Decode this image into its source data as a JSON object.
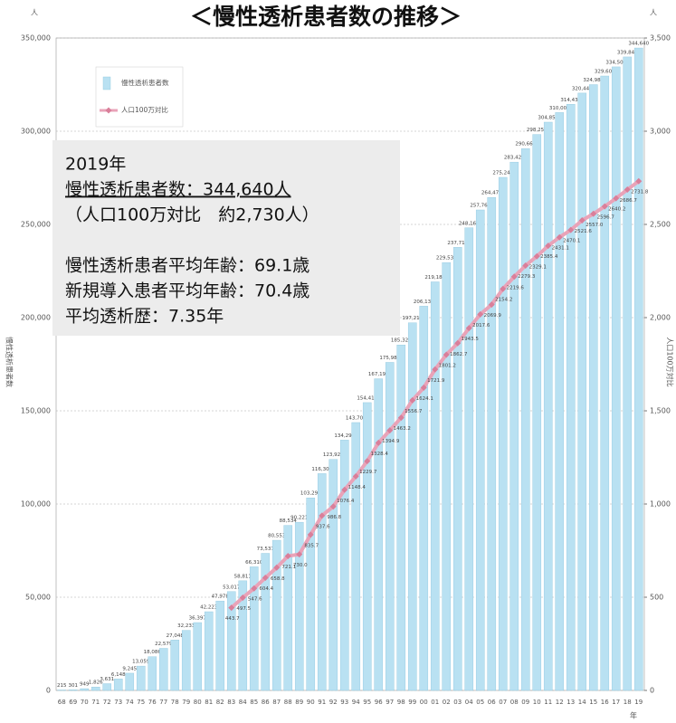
{
  "chart_data": {
    "type": "bar",
    "title": "＜慢性透析患者数の推移＞",
    "y_unit": "人",
    "y2_unit": "人",
    "x_unit": "年",
    "ylabel": "慢性透析患者数",
    "y2label": "人口100万対比",
    "annotations": [
      "2019年",
      "慢性透析患者数：344,640人",
      "（人口100万対比　約2,730人）",
      "慢性透析患者平均年齢：69.1歳",
      "新規導入患者平均年齢：70.4歳",
      "平均透析歴：7.35年"
    ],
    "categories": [
      "68",
      "69",
      "70",
      "71",
      "72",
      "73",
      "74",
      "75",
      "76",
      "77",
      "78",
      "79",
      "80",
      "81",
      "82",
      "83",
      "84",
      "85",
      "86",
      "87",
      "88",
      "89",
      "90",
      "91",
      "92",
      "93",
      "94",
      "95",
      "96",
      "97",
      "98",
      "99",
      "00",
      "01",
      "02",
      "03",
      "04",
      "05",
      "06",
      "07",
      "08",
      "09",
      "10",
      "11",
      "12",
      "13",
      "14",
      "15",
      "16",
      "17",
      "18",
      "19"
    ],
    "series": [
      {
        "name": "慢性透析患者数",
        "type": "bar",
        "color": "#b9e1f2",
        "values": [
          215,
          301,
          949,
          1826,
          3631,
          6148,
          9245,
          13059,
          18086,
          22579,
          27048,
          32233,
          36397,
          42223,
          47978,
          53017,
          58811,
          66310,
          73537,
          80553,
          88534,
          90221,
          103296,
          116303,
          123926,
          134298,
          143709,
          154413,
          167192,
          175988,
          185322,
          197213,
          206134,
          219183,
          229538,
          237710,
          248166,
          257765,
          264473,
          275242,
          283421,
          290661,
          298252,
          304856,
          310007,
          314438,
          320448,
          324986,
          329609,
          334505,
          339841,
          344640
        ],
        "value_labels": [
          "215",
          "301",
          "949",
          "1,826",
          "3,631",
          "6,148",
          "9,245",
          "13,059",
          "18,086",
          "22,579",
          "27,048",
          "32,233",
          "36,397",
          "42,223",
          "47,978",
          "53,017",
          "58,811",
          "66,310",
          "73,537",
          "80,553",
          "88,534",
          "90,221",
          "103,296",
          "116,303",
          "123,926",
          "134,298",
          "143,709",
          "154,413",
          "167,192",
          "175,988",
          "185,322",
          "197,213",
          "206,134",
          "219,183",
          "229,538",
          "237,710",
          "248,166",
          "257,765",
          "264,473",
          "275,242",
          "283,421",
          "290,661",
          "298,252",
          "304,856",
          "310,007",
          "314,438",
          "320,448",
          "324,986",
          "329,609",
          "334,505",
          "339,841",
          "344,640"
        ]
      },
      {
        "name": "人口100万対比",
        "type": "line",
        "axis": "y2",
        "color": "#e9a3b8",
        "values": [
          null,
          null,
          null,
          null,
          null,
          null,
          null,
          null,
          null,
          null,
          null,
          null,
          null,
          null,
          null,
          443.7,
          497.5,
          547.6,
          604.4,
          658.8,
          721.1,
          730.0,
          835.7,
          937.6,
          986.8,
          1076.4,
          1148.4,
          1229.7,
          1328.4,
          1394.9,
          1463.2,
          1556.7,
          1624.1,
          1721.9,
          1801.2,
          1862.7,
          1943.5,
          2017.6,
          2069.9,
          2154.2,
          2219.6,
          2279.3,
          2329.1,
          2385.4,
          2431.1,
          2470.1,
          2521.6,
          2557.0,
          2596.7,
          2640.2,
          2686.7,
          2731.8
        ],
        "value_labels": [
          null,
          null,
          null,
          null,
          null,
          null,
          null,
          null,
          null,
          null,
          null,
          null,
          null,
          null,
          null,
          "443.7",
          "497.5",
          "547.6",
          "604.4",
          "658.8",
          "721.1",
          "730.0",
          "835.7",
          "937.6",
          "986.8",
          "1076.4",
          "1148.4",
          "1229.7",
          "1328.4",
          "1394.9",
          "1463.2",
          "1556.7",
          "1624.1",
          "1721.9",
          "1801.2",
          "1862.7",
          "1943.5",
          "2017.6",
          "2069.9",
          "2154.2",
          "2219.6",
          "2279.3",
          "2329.1",
          "2385.4",
          "2431.1",
          "2470.1",
          "2521.6",
          "2557.0",
          "2596.7",
          "2640.2",
          "2686.7",
          "2731.8"
        ]
      }
    ],
    "ylim": [
      0,
      350000
    ],
    "yticks": [
      0,
      {
        "value": 50000,
        "label": "50,000"
      },
      {
        "value": 100000,
        "label": "100,000"
      },
      {
        "value": 150000,
        "label": "150,000"
      },
      {
        "value": 200000,
        "label": "200,000"
      },
      {
        "value": 250000,
        "label": "250,000"
      },
      {
        "value": 300000,
        "label": "300,000"
      },
      {
        "value": 350000,
        "label": "350,000"
      }
    ],
    "y2lim": [
      0,
      3500
    ],
    "y2ticks": [
      0,
      500,
      {
        "value": 1000,
        "label": "1,000"
      },
      {
        "value": 1500,
        "label": "1,500"
      },
      {
        "value": 2000,
        "label": "2,000"
      },
      {
        "value": 2500,
        "label": "2,500"
      },
      {
        "value": 3000,
        "label": "3,000"
      },
      {
        "value": 3500,
        "label": "3,500"
      }
    ],
    "grid": true
  }
}
